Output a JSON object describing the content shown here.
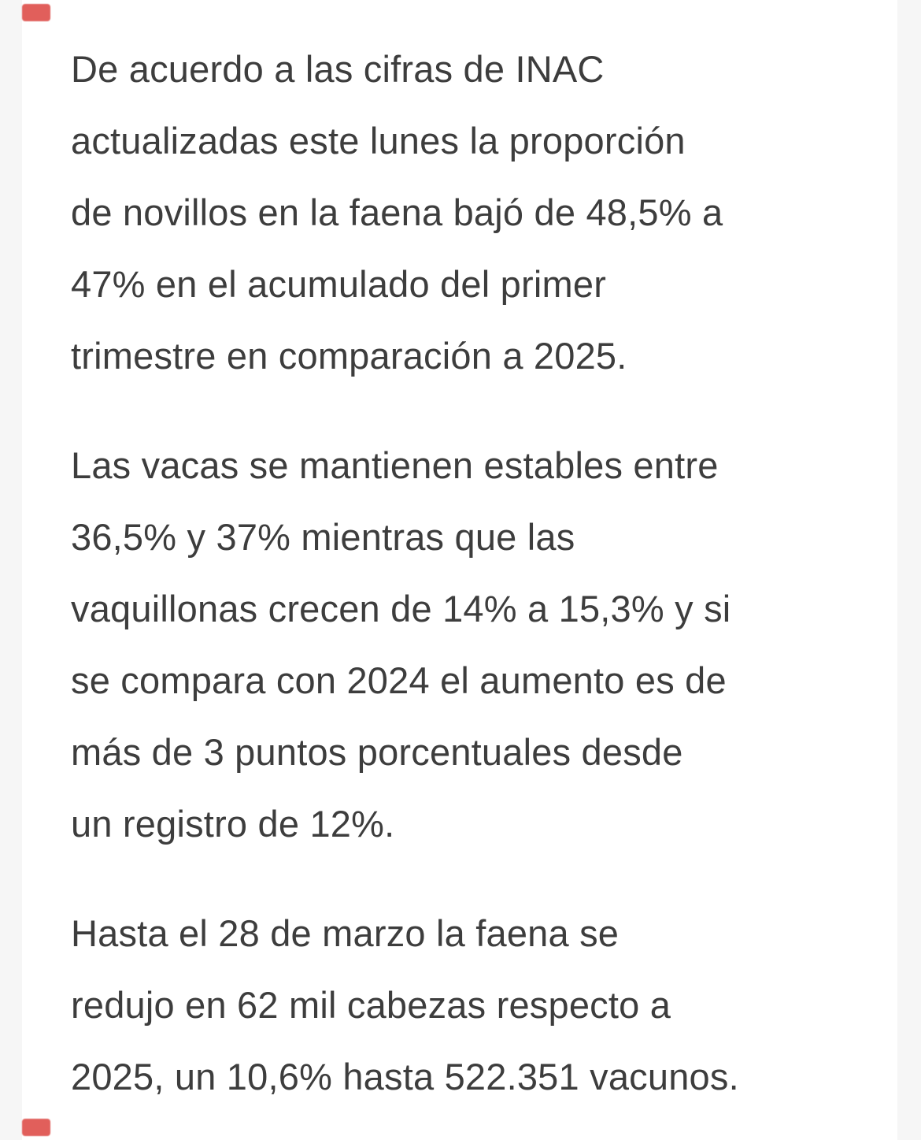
{
  "page": {
    "background_color": "#f6f6f6",
    "card_color": "#ffffff",
    "text_color": "#3d3d3d",
    "accent_color": "#dd4a45"
  },
  "article": {
    "language": "es",
    "paragraphs": [
      {
        "text": "De acuerdo a las cifras de INAC actualizadas este lunes la proporción de novillos en la faena bajó de 48,5% a 47% en el acumulado del primer trimestre en comparación a 2025.",
        "lines": [
          "De acuerdo a las cifras de INAC",
          "actualizadas este lunes la proporción",
          "de novillos en la faena bajó de 48,5% a",
          "47% en el acumulado del primer",
          "trimestre en comparación a 2025."
        ]
      },
      {
        "text": "Las vacas se mantienen estables entre 36,5% y 37% mientras que las vaquillonas crecen de 14% a 15,3% y si se compara con 2024 el aumento es de más de 3 puntos porcentuales desde un registro de 12%.",
        "lines": [
          "Las vacas se mantienen estables entre",
          "36,5% y 37% mientras que las",
          "vaquillonas crecen de 14% a 15,3% y si",
          "se compara con 2024 el aumento es de",
          "más de 3 puntos porcentuales desde",
          "un registro de 12%."
        ]
      },
      {
        "text": "Hasta el 28 de marzo la faena se redujo en 62 mil cabezas respecto a 2025, un 10,6% hasta 522.351 vacunos.",
        "lines": [
          "Hasta el 28 de marzo la faena se",
          "redujo en 62 mil cabezas respecto a",
          "2025, un 10,6% hasta 522.351 vacunos."
        ]
      }
    ]
  }
}
